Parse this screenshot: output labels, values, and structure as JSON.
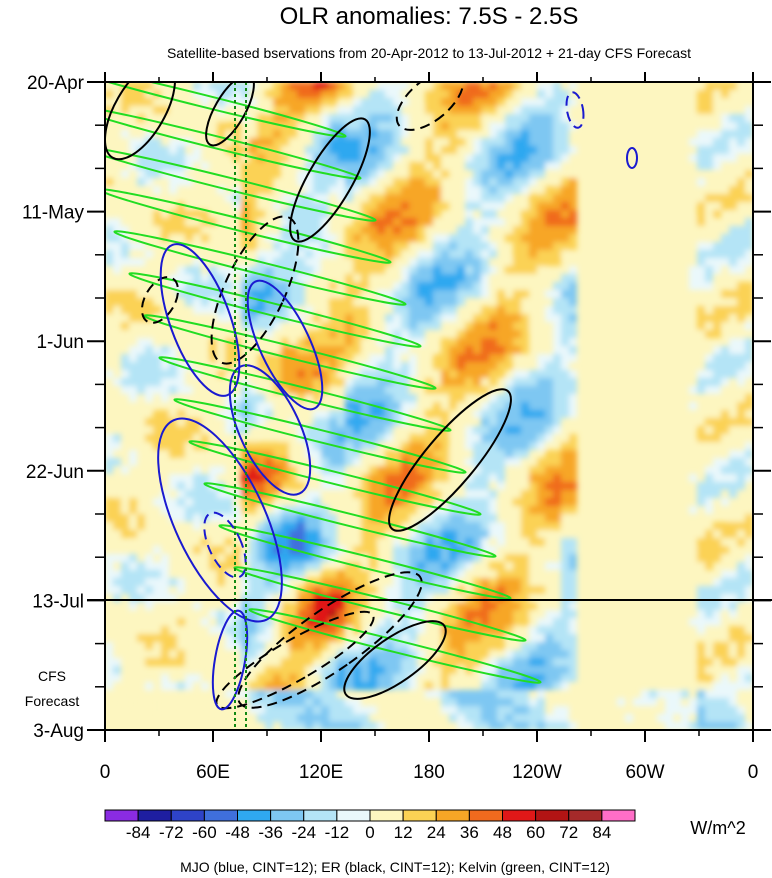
{
  "chart_data": {
    "type": "heatmap",
    "title": "OLR anomalies: 7.5S - 2.5S",
    "subtitle": "Satellite-based bservations from 20-Apr-2012 to 13-Jul-2012 + 21-day CFS Forecast",
    "x_tick_labels": [
      "0",
      "60E",
      "120E",
      "180",
      "120W",
      "60W",
      "0"
    ],
    "y_tick_labels": [
      "20-Apr",
      "11-May",
      "1-Jun",
      "22-Jun",
      "13-Jul",
      "3-Aug"
    ],
    "forecast_label_line1": "CFS",
    "forecast_label_line2": "Forecast",
    "forecast_start": "13-Jul",
    "colorbar": {
      "labels": [
        "-84",
        "-72",
        "-60",
        "-48",
        "-36",
        "-24",
        "-12",
        "0",
        "12",
        "24",
        "36",
        "48",
        "60",
        "72",
        "84"
      ],
      "colors": [
        "#8a2be2",
        "#1e1ea0",
        "#2e43c8",
        "#3f6fdc",
        "#2fa8f0",
        "#7ec7f2",
        "#b4e4f6",
        "#eaf8fb",
        "#fdf6c0",
        "#fbd254",
        "#f7a626",
        "#f06a1e",
        "#e01818",
        "#b21414",
        "#a52a2a",
        "#ff6ec7"
      ],
      "unit": "W/m^2"
    },
    "footnote": "MJO (blue, CINT=12); ER (black, CINT=12); Kelvin (green, CINT=12)",
    "contour_colors": {
      "MJO": "#1a1ad0",
      "ER": "#000000",
      "Kelvin": "#22dd22"
    }
  }
}
